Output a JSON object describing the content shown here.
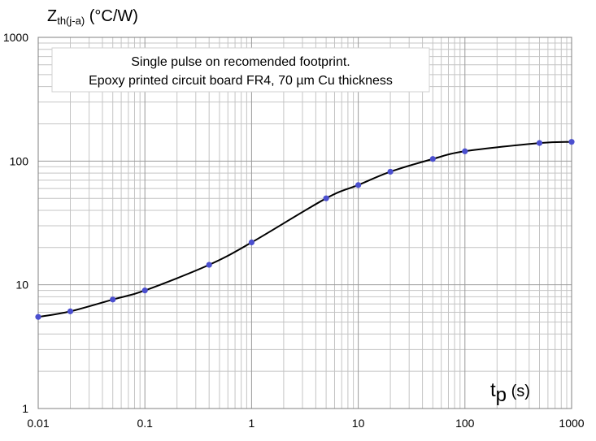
{
  "chart_data": {
    "type": "line",
    "title": "",
    "ylabel": {
      "main": "Z",
      "sub": "th(j-a)",
      "unit": " (°C/W)"
    },
    "xlabel": {
      "main": "t",
      "sub": "p",
      "unit": " (s)"
    },
    "xscale": "log",
    "yscale": "log",
    "xlim": [
      0.01,
      1000
    ],
    "ylim": [
      1,
      1000
    ],
    "grid": true,
    "x_ticks": [
      0.01,
      0.1,
      1,
      10,
      100,
      1000
    ],
    "x_tick_labels": [
      "0.01",
      "0.1",
      "1",
      "10",
      "100",
      "1000"
    ],
    "y_ticks": [
      1,
      10,
      100,
      1000
    ],
    "y_tick_labels": [
      "1",
      "10",
      "100",
      "1000"
    ],
    "annotation": [
      "Single pulse on recomended footprint.",
      "Epoxy printed circuit board FR4, 70 µm Cu thickness"
    ],
    "series": [
      {
        "color": "#000000",
        "marker_color": "#4b4fcf",
        "x": [
          0.01,
          0.02,
          0.05,
          0.1,
          0.4,
          1,
          5,
          10,
          20,
          50,
          100,
          500,
          1000
        ],
        "y": [
          5.5,
          6.1,
          7.6,
          9.0,
          14.5,
          22,
          50,
          64,
          82,
          104,
          120,
          140,
          143
        ]
      }
    ]
  }
}
